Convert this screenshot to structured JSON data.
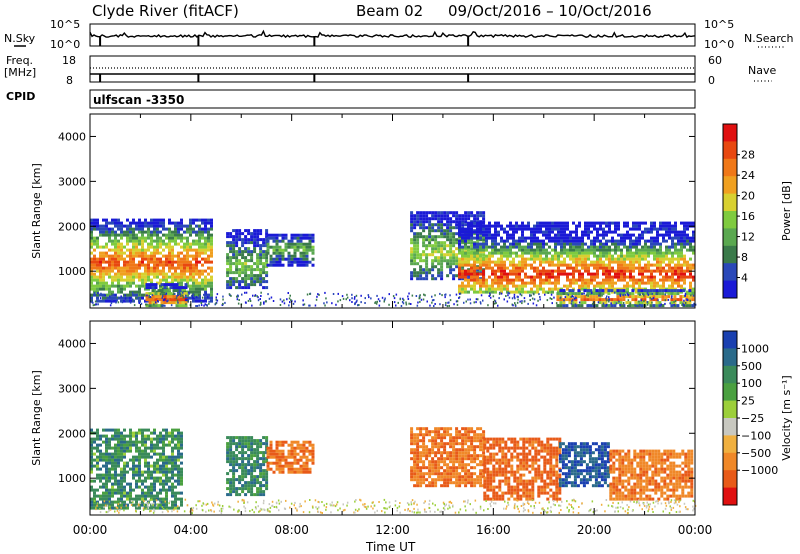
{
  "header": {
    "station": "Clyde River (fitACF)",
    "beam": "Beam 02",
    "dates": "09/Oct/2016 – 10/Oct/2016",
    "cpid_label": "CPID",
    "cpid_value": "ulfscan -3350"
  },
  "panels": {
    "nsky": {
      "label": "N.Sky",
      "left_ticks": [
        "10^5",
        "10^0"
      ],
      "right_ticks": [
        "10^5",
        "10^0"
      ],
      "right_label": "N.Search"
    },
    "freq": {
      "label_1": "Freq.",
      "label_2": "[MHz]",
      "left_ticks": [
        "18",
        "8"
      ],
      "right_ticks": [
        "60",
        "0"
      ],
      "right_label": "Nave"
    }
  },
  "chart_data": [
    {
      "type": "heatmap",
      "title": "",
      "xlabel": "Time UT",
      "ylabel": "Slant Range [km]",
      "xlim": [
        0,
        24
      ],
      "ylim": [
        180,
        4500
      ],
      "x_ticks": [
        "00:00",
        "04:00",
        "08:00",
        "12:00",
        "16:00",
        "20:00",
        "00:00"
      ],
      "y_ticks": [
        1000,
        2000,
        3000,
        4000
      ],
      "colorbar": {
        "label": "Power [dB]",
        "ticks": [
          "4",
          "8",
          "12",
          "16",
          "20",
          "24",
          "28"
        ],
        "colors": [
          "#1a1ad6",
          "#2a48b8",
          "#3a7a4a",
          "#5aa850",
          "#7fcb3f",
          "#d8d030",
          "#f0a020",
          "#f07818",
          "#e84810",
          "#e01010"
        ]
      },
      "regions": [
        {
          "t0": 0.0,
          "t1": 4.8,
          "r0": 300,
          "r1": 2150,
          "core": 1150,
          "peak": 24
        },
        {
          "t0": 2.2,
          "t1": 3.8,
          "r0": 200,
          "r1": 700,
          "core": 350,
          "peak": 26
        },
        {
          "t0": 5.4,
          "t1": 7.0,
          "r0": 600,
          "r1": 1900,
          "core": 1100,
          "peak": 12
        },
        {
          "t0": 7.0,
          "t1": 8.8,
          "r0": 1100,
          "r1": 1800,
          "core": 1450,
          "peak": 10
        },
        {
          "t0": 12.7,
          "t1": 15.6,
          "r0": 800,
          "r1": 2300,
          "core": 1400,
          "peak": 14
        },
        {
          "t0": 14.6,
          "t1": 23.9,
          "r0": 500,
          "r1": 2100,
          "core": 900,
          "peak": 26
        },
        {
          "t0": 18.5,
          "t1": 23.9,
          "r0": 200,
          "r1": 600,
          "core": 350,
          "peak": 24
        }
      ]
    },
    {
      "type": "heatmap",
      "title": "",
      "xlabel": "Time UT",
      "ylabel": "Slant Range [km]",
      "xlim": [
        0,
        24
      ],
      "ylim": [
        180,
        4500
      ],
      "x_ticks": [
        "00:00",
        "04:00",
        "08:00",
        "12:00",
        "16:00",
        "20:00",
        "00:00"
      ],
      "y_ticks": [
        1000,
        2000,
        3000,
        4000
      ],
      "colorbar": {
        "label": "Velocity [m s⁻¹]",
        "ticks": [
          "1000",
          "500",
          "100",
          "25",
          "−25",
          "−100",
          "−500",
          "−1000"
        ],
        "colors": [
          "#1a40b0",
          "#2a6a8a",
          "#3a8a5a",
          "#4aa040",
          "#9ccf3a",
          "#c8c8c0",
          "#f0b040",
          "#f08828",
          "#e85a18",
          "#e01010"
        ]
      },
      "regions": [
        {
          "t0": 0.0,
          "t1": 3.6,
          "r0": 300,
          "r1": 2100,
          "velocity": 200
        },
        {
          "t0": 5.4,
          "t1": 7.0,
          "r0": 600,
          "r1": 1900,
          "velocity": 250
        },
        {
          "t0": 7.0,
          "t1": 8.8,
          "r0": 1100,
          "r1": 1800,
          "velocity": -400
        },
        {
          "t0": 12.7,
          "t1": 15.6,
          "r0": 800,
          "r1": 2100,
          "velocity": -350
        },
        {
          "t0": 15.6,
          "t1": 18.6,
          "r0": 500,
          "r1": 1900,
          "velocity": -500
        },
        {
          "t0": 18.6,
          "t1": 20.6,
          "r0": 800,
          "r1": 1800,
          "velocity": 700
        },
        {
          "t0": 20.6,
          "t1": 23.9,
          "r0": 500,
          "r1": 1600,
          "velocity": -300
        }
      ]
    }
  ]
}
